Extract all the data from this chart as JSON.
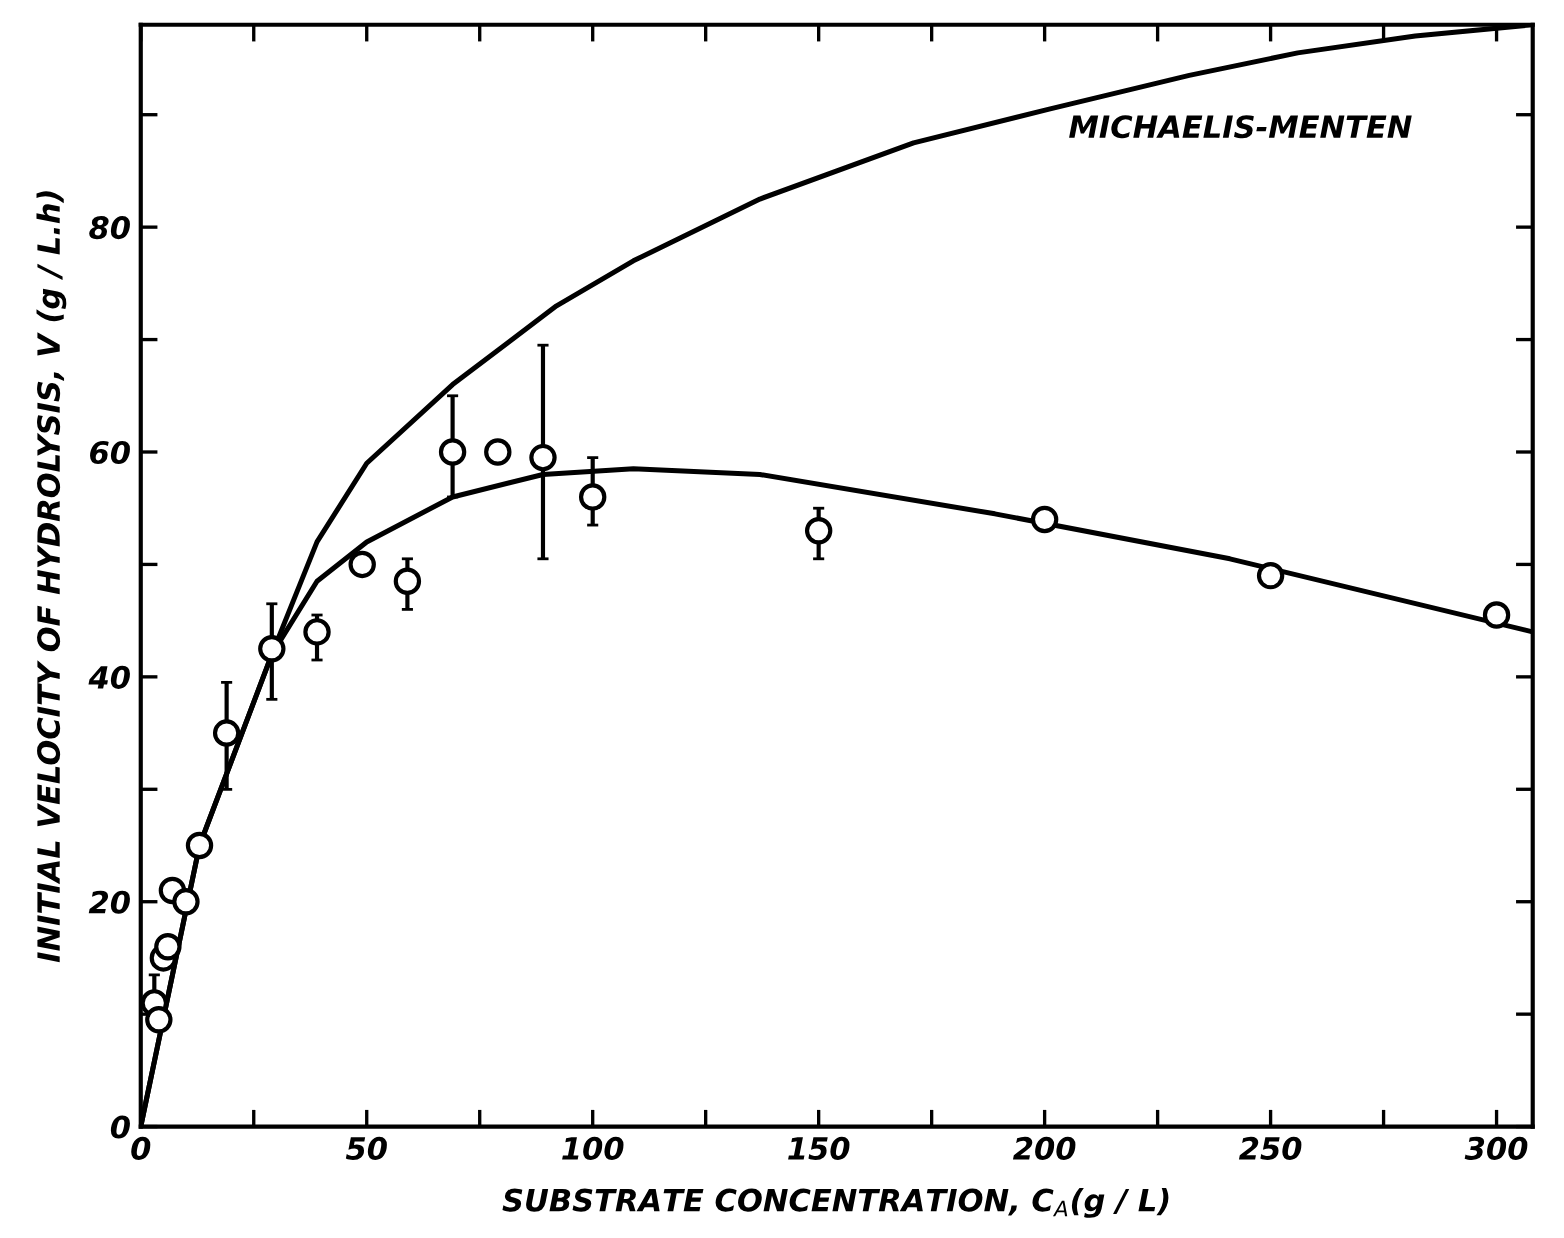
{
  "chart_data": {
    "type": "scatter",
    "xlabel": "SUBSTRATE CONCENTRATION, C$_{A}$(g / L)",
    "ylabel": "INITIAL VELOCITY OF HYDROLYSIS, V (g / L.h)",
    "xlim": [
      0,
      308
    ],
    "ylim": [
      0,
      98
    ],
    "xticks": [
      0,
      {
        "value": 25,
        "label": null
      },
      50,
      {
        "value": 75,
        "label": null
      },
      100,
      {
        "value": 125,
        "label": null
      },
      150,
      {
        "value": 175,
        "label": null
      },
      200,
      {
        "value": 225,
        "label": null
      },
      250,
      {
        "value": 275,
        "label": null
      },
      300
    ],
    "yticks": [
      0,
      {
        "value": 10,
        "label": null
      },
      20,
      {
        "value": 30,
        "label": null
      },
      40,
      {
        "value": 50,
        "label": null
      },
      60,
      {
        "value": 70,
        "label": null
      },
      80,
      {
        "value": 90,
        "label": null
      }
    ],
    "grid": false,
    "legend": false,
    "marker": "circle",
    "series": [
      {
        "color": "#000000",
        "x": [
          3,
          4,
          5,
          6,
          7,
          10,
          13,
          19,
          29,
          39,
          49,
          59,
          69,
          79,
          89,
          100,
          150,
          200,
          250,
          300
        ],
        "values": [
          11,
          9.5,
          15,
          16,
          21,
          20,
          25,
          35,
          42.5,
          44,
          50,
          48.5,
          60,
          60,
          59.5,
          56,
          53,
          54,
          49,
          45.5
        ],
        "errors": [
          [
            10.5,
            13.5
          ],
          null,
          null,
          null,
          null,
          null,
          null,
          [
            30,
            39.5
          ],
          [
            38,
            46.5
          ],
          [
            41.5,
            45.5
          ],
          null,
          [
            46,
            50.5
          ],
          [
            56,
            65
          ],
          null,
          [
            50.5,
            69.5
          ],
          [
            53.5,
            59.5
          ],
          [
            50.5,
            55
          ],
          null,
          null,
          null
        ]
      },
      {
        "type": "line",
        "color": "#000000",
        "marker": "none",
        "line_style": "solid",
        "x": [
          0,
          13,
          29,
          39,
          50,
          69,
          92,
          109,
          137,
          171,
          201,
          232,
          256,
          282,
          308
        ],
        "values": [
          0,
          25,
          42,
          52,
          59,
          66,
          73,
          77,
          82.5,
          87.5,
          90.5,
          93.5,
          95.5,
          97,
          98
        ]
      },
      {
        "type": "line",
        "color": "#000000",
        "marker": "none",
        "line_style": "solid",
        "x": [
          0,
          13,
          29,
          39,
          50,
          69,
          89,
          109,
          137,
          189,
          241,
          308
        ],
        "values": [
          0,
          25,
          42,
          48.5,
          52,
          56,
          58,
          58.5,
          58,
          54.5,
          50.5,
          44
        ]
      }
    ],
    "annotations": [
      "MICHAELIS-MENTEN"
    ]
  }
}
